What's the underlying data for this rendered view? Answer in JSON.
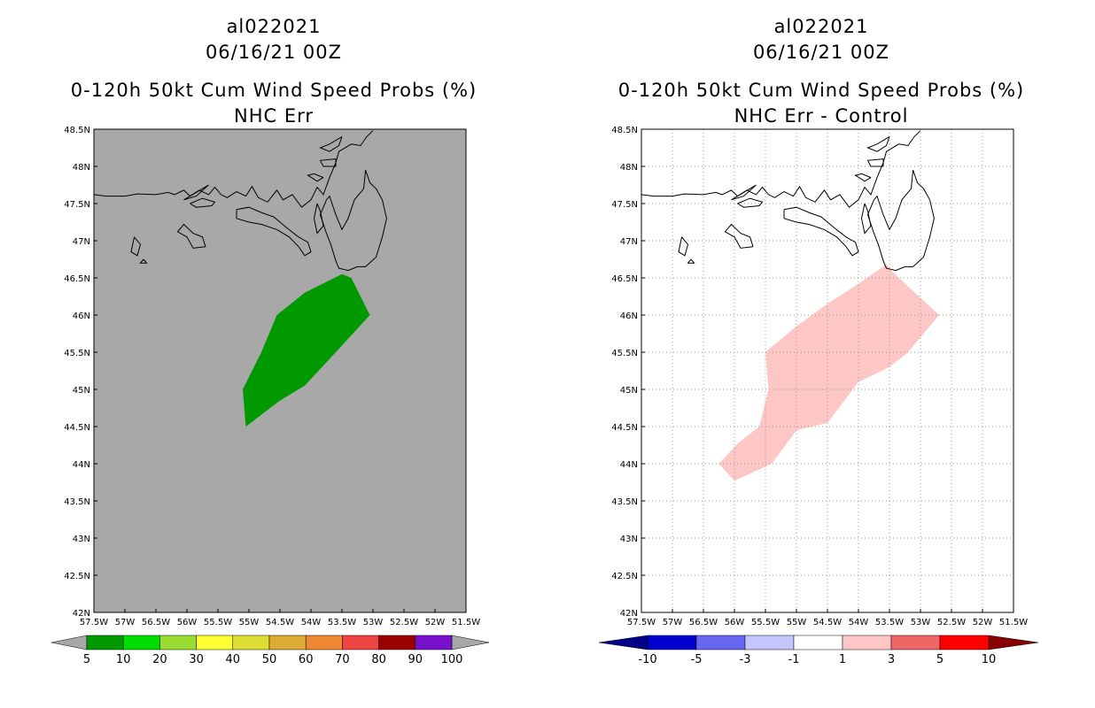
{
  "colors": {
    "map_bg_left": "#a8a8a8",
    "map_bg_right": "#ffffff",
    "prob_fill": "#009900",
    "diff_fill": "#ffc6c6",
    "coast": "#000000"
  },
  "chart_data": [
    {
      "type": "heatmap",
      "storm": "al022021",
      "datetime": "06/16/21 00Z",
      "title": "0-120h 50kt Cum Wind Speed Probs (%)",
      "subtitle": "NHC Err",
      "grid": false,
      "xlim": [
        -57.5,
        -51.5
      ],
      "ylim": [
        42,
        48.5
      ],
      "xticks": [
        "57.5W",
        "57W",
        "56.5W",
        "56W",
        "55.5W",
        "55W",
        "54.5W",
        "54W",
        "53.5W",
        "53W",
        "52.5W",
        "52W",
        "51.5W"
      ],
      "yticks": [
        "42N",
        "42.5N",
        "43N",
        "43.5N",
        "44N",
        "44.5N",
        "45N",
        "45.5N",
        "46N",
        "46.5N",
        "47N",
        "47.5N",
        "48N",
        "48.5N"
      ],
      "regions": [
        {
          "label": "5-10 %",
          "color": "#009900",
          "polygon": [
            [
              -55.05,
              44.5
            ],
            [
              -55.1,
              45.0
            ],
            [
              -54.8,
              45.5
            ],
            [
              -54.55,
              46.0
            ],
            [
              -54.1,
              46.3
            ],
            [
              -53.5,
              46.55
            ],
            [
              -53.35,
              46.5
            ],
            [
              -53.05,
              46.0
            ],
            [
              -53.6,
              45.5
            ],
            [
              -54.1,
              45.05
            ],
            [
              -54.5,
              44.85
            ]
          ]
        }
      ],
      "colorbar": {
        "labels": [
          "5",
          "10",
          "20",
          "30",
          "40",
          "50",
          "60",
          "70",
          "80",
          "90",
          "100"
        ],
        "colors": [
          "#009900",
          "#00dd00",
          "#99dd33",
          "#ffff33",
          "#dddd33",
          "#ddaa33",
          "#ee8833",
          "#ee4444",
          "#990000",
          "#7711cc"
        ],
        "under_color": "#a8a8a8",
        "over_color": "#a8a8a8"
      }
    },
    {
      "type": "heatmap",
      "storm": "al022021",
      "datetime": "06/16/21 00Z",
      "title": "0-120h 50kt Cum Wind Speed Probs (%)",
      "subtitle": "NHC Err - Control",
      "grid": true,
      "xlim": [
        -57.5,
        -51.5
      ],
      "ylim": [
        42,
        48.5
      ],
      "xticks": [
        "57.5W",
        "57W",
        "56.5W",
        "56W",
        "55.5W",
        "55W",
        "54.5W",
        "54W",
        "53.5W",
        "53W",
        "52.5W",
        "52W",
        "51.5W"
      ],
      "yticks": [
        "42N",
        "42.5N",
        "43N",
        "43.5N",
        "44N",
        "44.5N",
        "45N",
        "45.5N",
        "46N",
        "46.5N",
        "47N",
        "47.5N",
        "48N",
        "48.5N"
      ],
      "regions": [
        {
          "label": "1-3",
          "color": "#ffc6c6",
          "polygon": [
            [
              -56.0,
              43.77
            ],
            [
              -56.25,
              44.0
            ],
            [
              -55.95,
              44.27
            ],
            [
              -55.6,
              44.5
            ],
            [
              -55.45,
              45.0
            ],
            [
              -55.5,
              45.5
            ],
            [
              -55.0,
              45.85
            ],
            [
              -54.5,
              46.15
            ],
            [
              -53.95,
              46.45
            ],
            [
              -53.55,
              46.68
            ],
            [
              -53.45,
              46.58
            ],
            [
              -52.7,
              46.0
            ],
            [
              -53.2,
              45.5
            ],
            [
              -53.5,
              45.3
            ],
            [
              -54.0,
              45.1
            ],
            [
              -54.5,
              44.55
            ],
            [
              -55.0,
              44.45
            ],
            [
              -55.4,
              44.0
            ]
          ]
        }
      ],
      "colorbar": {
        "labels": [
          "-10",
          "-5",
          "-3",
          "-1",
          "1",
          "3",
          "5",
          "10"
        ],
        "colors": [
          "#0000cc",
          "#6666ee",
          "#c6c6ff",
          "#ffffff",
          "#ffc6c6",
          "#ee6666",
          "#ff0000"
        ],
        "under_color": "#000088",
        "over_color": "#880000"
      }
    }
  ]
}
